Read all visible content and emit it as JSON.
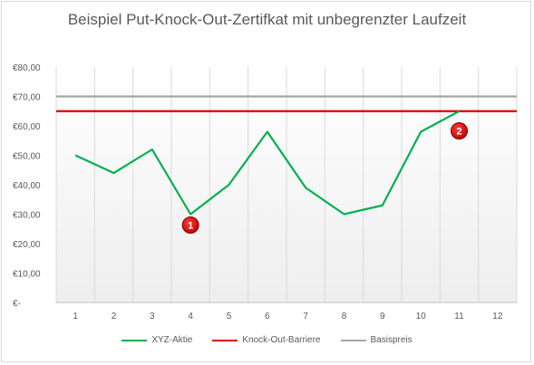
{
  "chart_data": {
    "type": "line",
    "title": "Beispiel Put-Knock-Out-Zertifkat mit unbegrenzter Laufzeit",
    "x": [
      1,
      2,
      3,
      4,
      5,
      6,
      7,
      8,
      9,
      10,
      11,
      12
    ],
    "x_tick_labels": [
      "1",
      "2",
      "3",
      "4",
      "5",
      "6",
      "7",
      "8",
      "9",
      "10",
      "11",
      "12"
    ],
    "y_tick_labels": [
      "€-",
      "€10,00",
      "€20,00",
      "€30,00",
      "€40,00",
      "€50,00",
      "€60,00",
      "€70,00",
      "€80,00"
    ],
    "y_ticks": [
      0,
      10,
      20,
      30,
      40,
      50,
      60,
      70,
      80
    ],
    "ylim": [
      0,
      80
    ],
    "grid": "vertical",
    "legend_position": "bottom",
    "series": [
      {
        "name": "XYZ-Aktie",
        "color": "#00b050",
        "values": [
          50,
          44,
          52,
          30,
          40,
          58,
          39,
          30,
          33,
          58,
          65,
          null
        ]
      },
      {
        "name": "Knock-Out-Barriere",
        "color": "#e00000",
        "values": [
          65,
          65,
          65,
          65,
          65,
          65,
          65,
          65,
          65,
          65,
          65,
          65
        ]
      },
      {
        "name": "Basispreis",
        "color": "#a6a6a6",
        "values": [
          70,
          70,
          70,
          70,
          70,
          70,
          70,
          70,
          70,
          70,
          70,
          70
        ]
      }
    ],
    "annotations": [
      {
        "label": "1",
        "x": 4,
        "y": 30
      },
      {
        "label": "2",
        "x": 11,
        "y": 62
      }
    ]
  }
}
